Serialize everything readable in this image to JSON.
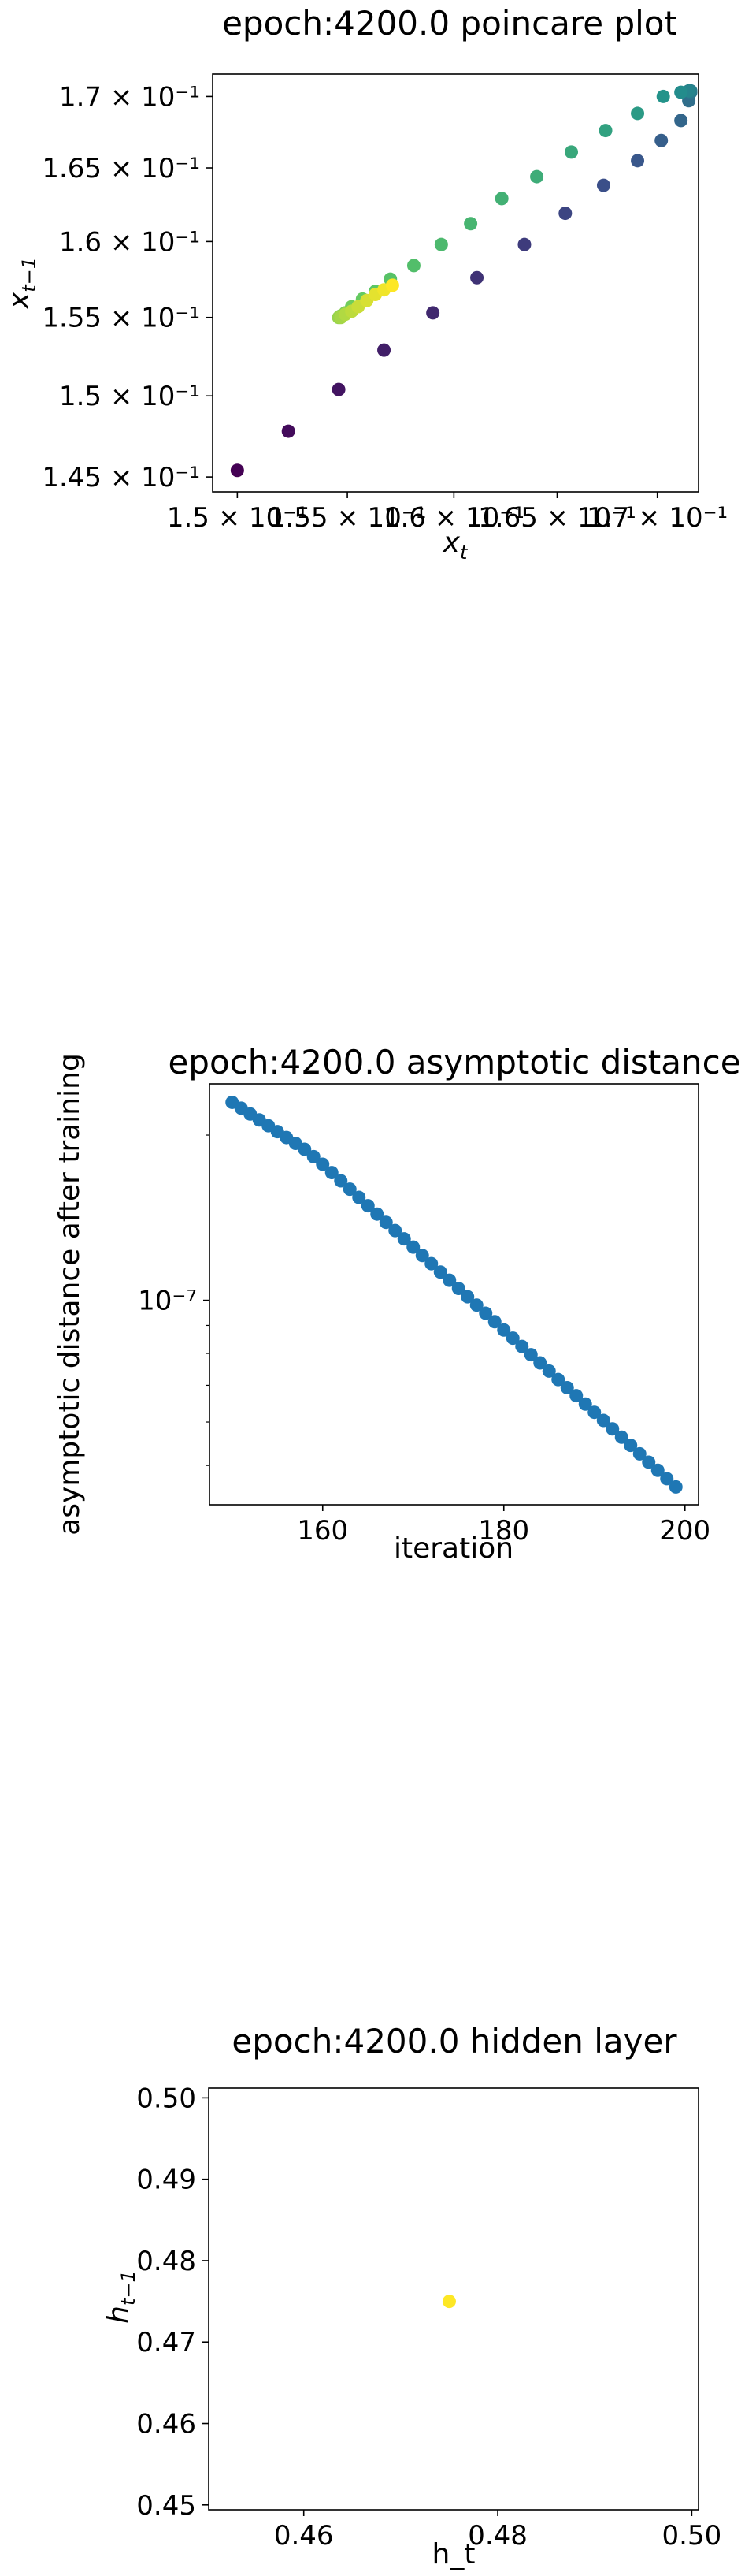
{
  "chart_data": [
    {
      "type": "scatter",
      "title": "epoch:4200.0 poincare plot",
      "xlabel": "x_t",
      "ylabel": "x_{t-1}",
      "xscale": "log",
      "yscale": "log",
      "colormap": "viridis",
      "xlim": [
        0.1489,
        0.1721
      ],
      "ylim": [
        0.1441,
        0.1716
      ],
      "xticks": [
        {
          "value": 0.15,
          "label": "1.5 × 10⁻¹"
        },
        {
          "value": 0.155,
          "label": "1.55 × 10⁻¹"
        },
        {
          "value": 0.16,
          "label": "1.6 × 10⁻¹"
        },
        {
          "value": 0.165,
          "label": "1.65 × 10⁻¹"
        },
        {
          "value": 0.17,
          "label": "1.7 × 10⁻¹"
        }
      ],
      "yticks": [
        {
          "value": 0.145,
          "label": "1.45 × 10⁻¹"
        },
        {
          "value": 0.15,
          "label": "1.5 × 10⁻¹"
        },
        {
          "value": 0.155,
          "label": "1.55 × 10⁻¹"
        },
        {
          "value": 0.16,
          "label": "1.6 × 10⁻¹"
        },
        {
          "value": 0.165,
          "label": "1.65 × 10⁻¹"
        },
        {
          "value": 0.17,
          "label": "1.7 × 10⁻¹"
        }
      ],
      "points": [
        {
          "x": 0.15,
          "y": 0.1454,
          "c": 0.0
        },
        {
          "x": 0.1523,
          "y": 0.1478,
          "c": 0.03
        },
        {
          "x": 0.1546,
          "y": 0.1504,
          "c": 0.06
        },
        {
          "x": 0.1567,
          "y": 0.1529,
          "c": 0.09
        },
        {
          "x": 0.159,
          "y": 0.1553,
          "c": 0.12
        },
        {
          "x": 0.1611,
          "y": 0.1576,
          "c": 0.15
        },
        {
          "x": 0.1634,
          "y": 0.1598,
          "c": 0.18
        },
        {
          "x": 0.1654,
          "y": 0.1619,
          "c": 0.21
        },
        {
          "x": 0.1673,
          "y": 0.1638,
          "c": 0.24
        },
        {
          "x": 0.169,
          "y": 0.1655,
          "c": 0.27
        },
        {
          "x": 0.1702,
          "y": 0.1669,
          "c": 0.3
        },
        {
          "x": 0.1712,
          "y": 0.1683,
          "c": 0.33
        },
        {
          "x": 0.1716,
          "y": 0.1697,
          "c": 0.36
        },
        {
          "x": 0.1717,
          "y": 0.1703,
          "c": 0.39
        },
        {
          "x": 0.1717,
          "y": 0.1704,
          "c": 0.42
        },
        {
          "x": 0.1716,
          "y": 0.1704,
          "c": 0.45
        },
        {
          "x": 0.1712,
          "y": 0.1703,
          "c": 0.48
        },
        {
          "x": 0.1703,
          "y": 0.17,
          "c": 0.51
        },
        {
          "x": 0.169,
          "y": 0.1688,
          "c": 0.54
        },
        {
          "x": 0.1674,
          "y": 0.1676,
          "c": 0.57
        },
        {
          "x": 0.1657,
          "y": 0.1661,
          "c": 0.6
        },
        {
          "x": 0.164,
          "y": 0.1644,
          "c": 0.62
        },
        {
          "x": 0.1623,
          "y": 0.1629,
          "c": 0.64
        },
        {
          "x": 0.1608,
          "y": 0.1612,
          "c": 0.66
        },
        {
          "x": 0.1594,
          "y": 0.1598,
          "c": 0.68
        },
        {
          "x": 0.1581,
          "y": 0.1584,
          "c": 0.7
        },
        {
          "x": 0.157,
          "y": 0.1575,
          "c": 0.72
        },
        {
          "x": 0.1563,
          "y": 0.1567,
          "c": 0.74
        },
        {
          "x": 0.1557,
          "y": 0.1562,
          "c": 0.76
        },
        {
          "x": 0.1552,
          "y": 0.1557,
          "c": 0.78
        },
        {
          "x": 0.1549,
          "y": 0.1553,
          "c": 0.8
        },
        {
          "x": 0.1547,
          "y": 0.1551,
          "c": 0.82
        },
        {
          "x": 0.1546,
          "y": 0.155,
          "c": 0.84
        },
        {
          "x": 0.1547,
          "y": 0.155,
          "c": 0.86
        },
        {
          "x": 0.1549,
          "y": 0.1552,
          "c": 0.88
        },
        {
          "x": 0.1552,
          "y": 0.1554,
          "c": 0.9
        },
        {
          "x": 0.1555,
          "y": 0.1557,
          "c": 0.92
        },
        {
          "x": 0.1559,
          "y": 0.1561,
          "c": 0.94
        },
        {
          "x": 0.1563,
          "y": 0.1565,
          "c": 0.96
        },
        {
          "x": 0.1567,
          "y": 0.1568,
          "c": 0.98
        },
        {
          "x": 0.1571,
          "y": 0.1571,
          "c": 1.0
        }
      ]
    },
    {
      "type": "scatter",
      "title": "epoch:4200.0 asymptotic distance",
      "xlabel": "iteration",
      "ylabel": "asymptotic distance after training",
      "yscale": "log",
      "color": "#1f77b4",
      "xlim": [
        147.5,
        201.5
      ],
      "ylim": [
        4.24e-08,
        2.48e-07
      ],
      "xticks": [
        {
          "value": 160,
          "label": "160"
        },
        {
          "value": 180,
          "label": "180"
        },
        {
          "value": 200,
          "label": "200"
        }
      ],
      "yticks": [
        {
          "value": 1e-07,
          "label": "10⁻⁷"
        }
      ],
      "x": [
        150,
        151,
        152,
        153,
        154,
        155,
        156,
        157,
        158,
        159,
        160,
        161,
        162,
        163,
        164,
        165,
        166,
        167,
        168,
        169,
        170,
        171,
        172,
        173,
        174,
        175,
        176,
        177,
        178,
        179,
        180,
        181,
        182,
        183,
        184,
        185,
        186,
        187,
        188,
        189,
        190,
        191,
        192,
        193,
        194,
        195,
        196,
        197,
        198,
        199
      ],
      "y": [
        2.295e-07,
        2.239e-07,
        2.185e-07,
        2.132e-07,
        2.08e-07,
        2.029e-07,
        1.98e-07,
        1.932e-07,
        1.885e-07,
        1.827e-07,
        1.77e-07,
        1.709e-07,
        1.651e-07,
        1.594e-07,
        1.54e-07,
        1.487e-07,
        1.436e-07,
        1.387e-07,
        1.34e-07,
        1.294e-07,
        1.25e-07,
        1.207e-07,
        1.166e-07,
        1.126e-07,
        1.088e-07,
        1.051e-07,
        1.015e-07,
        9.8e-08,
        9.47e-08,
        9.14e-08,
        8.83e-08,
        8.53e-08,
        8.24e-08,
        7.96e-08,
        7.69e-08,
        7.43e-08,
        7.17e-08,
        6.93e-08,
        6.7e-08,
        6.47e-08,
        6.25e-08,
        6.04e-08,
        5.83e-08,
        5.63e-08,
        5.44e-08,
        5.25e-08,
        5.07e-08,
        4.9e-08,
        4.73e-08,
        4.57e-08
      ]
    },
    {
      "type": "scatter",
      "title": "epoch:4200.0 hidden layer",
      "xlabel": "h_t",
      "ylabel": "h_{t-1}",
      "xlim": [
        0.4502,
        0.5007
      ],
      "ylim": [
        0.4494,
        0.5012
      ],
      "xticks": [
        {
          "value": 0.46,
          "label": "0.46"
        },
        {
          "value": 0.48,
          "label": "0.48"
        },
        {
          "value": 0.5,
          "label": "0.50"
        }
      ],
      "yticks": [
        {
          "value": 0.45,
          "label": "0.45"
        },
        {
          "value": 0.46,
          "label": "0.46"
        },
        {
          "value": 0.47,
          "label": "0.47"
        },
        {
          "value": 0.48,
          "label": "0.48"
        },
        {
          "value": 0.49,
          "label": "0.49"
        },
        {
          "value": 0.5,
          "label": "0.50"
        }
      ],
      "points": [
        {
          "x": 0.475,
          "y": 0.475,
          "color": "#fde725"
        }
      ]
    }
  ]
}
